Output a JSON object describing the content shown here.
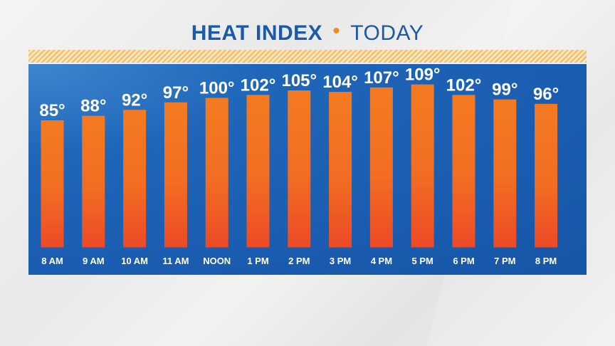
{
  "title": "HEAT INDEX",
  "subtitle": "TODAY",
  "separator": "•",
  "colors": {
    "title": "#1b5aa6",
    "accent": "#f08a1c",
    "panel": "#1a5cb0",
    "bar_top": "#f47a21",
    "bar_bottom": "#ec4a26"
  },
  "chart_data": {
    "type": "bar",
    "categories": [
      "8 AM",
      "9 AM",
      "10 AM",
      "11 AM",
      "NOON",
      "1 PM",
      "2 PM",
      "3 PM",
      "4 PM",
      "5 PM",
      "6 PM",
      "7 PM",
      "8 PM"
    ],
    "values": [
      85,
      88,
      92,
      97,
      100,
      102,
      105,
      104,
      107,
      109,
      102,
      99,
      96
    ],
    "value_labels": [
      "85°",
      "88°",
      "92°",
      "97°",
      "100°",
      "102°",
      "105°",
      "104°",
      "107°",
      "109°",
      "102°",
      "99°",
      "96°"
    ],
    "ylim": [
      0,
      120
    ],
    "grid": false,
    "legend": "none"
  }
}
